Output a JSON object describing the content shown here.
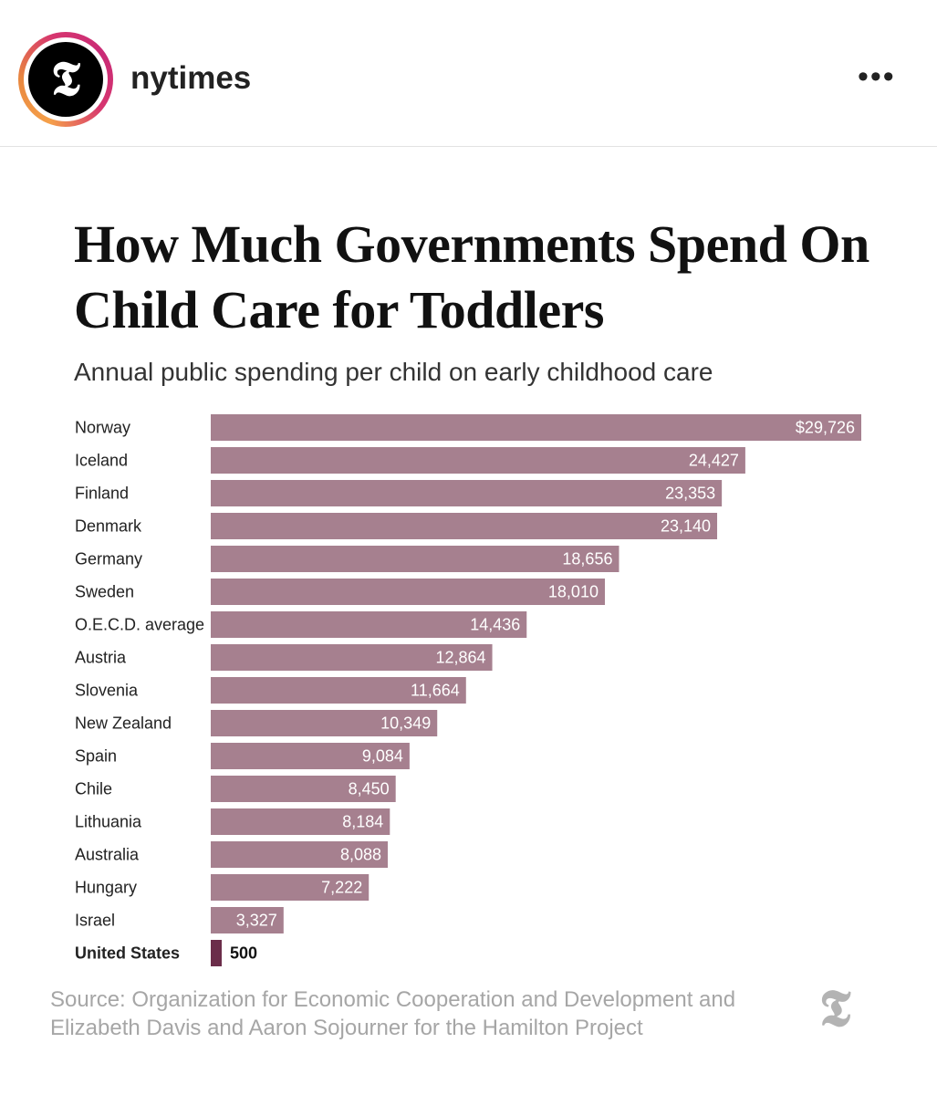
{
  "header": {
    "username": "nytimes",
    "avatar_logo": "T",
    "more_icon": "•••"
  },
  "chart_data": {
    "type": "bar",
    "orientation": "horizontal",
    "title": "How Much Governments Spend On Child Care for Toddlers",
    "subtitle": "Annual public spending per child on early childhood care",
    "categories": [
      "Norway",
      "Iceland",
      "Finland",
      "Denmark",
      "Germany",
      "Sweden",
      "O.E.C.D. average",
      "Austria",
      "Slovenia",
      "New Zealand",
      "Spain",
      "Chile",
      "Lithuania",
      "Australia",
      "Hungary",
      "Israel",
      "United States"
    ],
    "values": [
      29726,
      24427,
      23353,
      23140,
      18656,
      18010,
      14436,
      12864,
      11664,
      10349,
      9084,
      8450,
      8184,
      8088,
      7222,
      3327,
      500
    ],
    "labels": [
      "$29,726",
      "24,427",
      "23,353",
      "23,140",
      "18,656",
      "18,010",
      "14,436",
      "12,864",
      "11,664",
      "10,349",
      "9,084",
      "8,450",
      "8,184",
      "8,088",
      "7,222",
      "3,327",
      "500"
    ],
    "highlight": "United States",
    "colors": {
      "bar": "#a6808f",
      "highlight": "#6b2d4a"
    },
    "xlim": [
      0,
      29726
    ],
    "source": "Source: Organization for Economic Cooperation and Development and Elizabeth Davis and Aaron Sojourner for the Hamilton Project"
  },
  "footer_logo": "T"
}
